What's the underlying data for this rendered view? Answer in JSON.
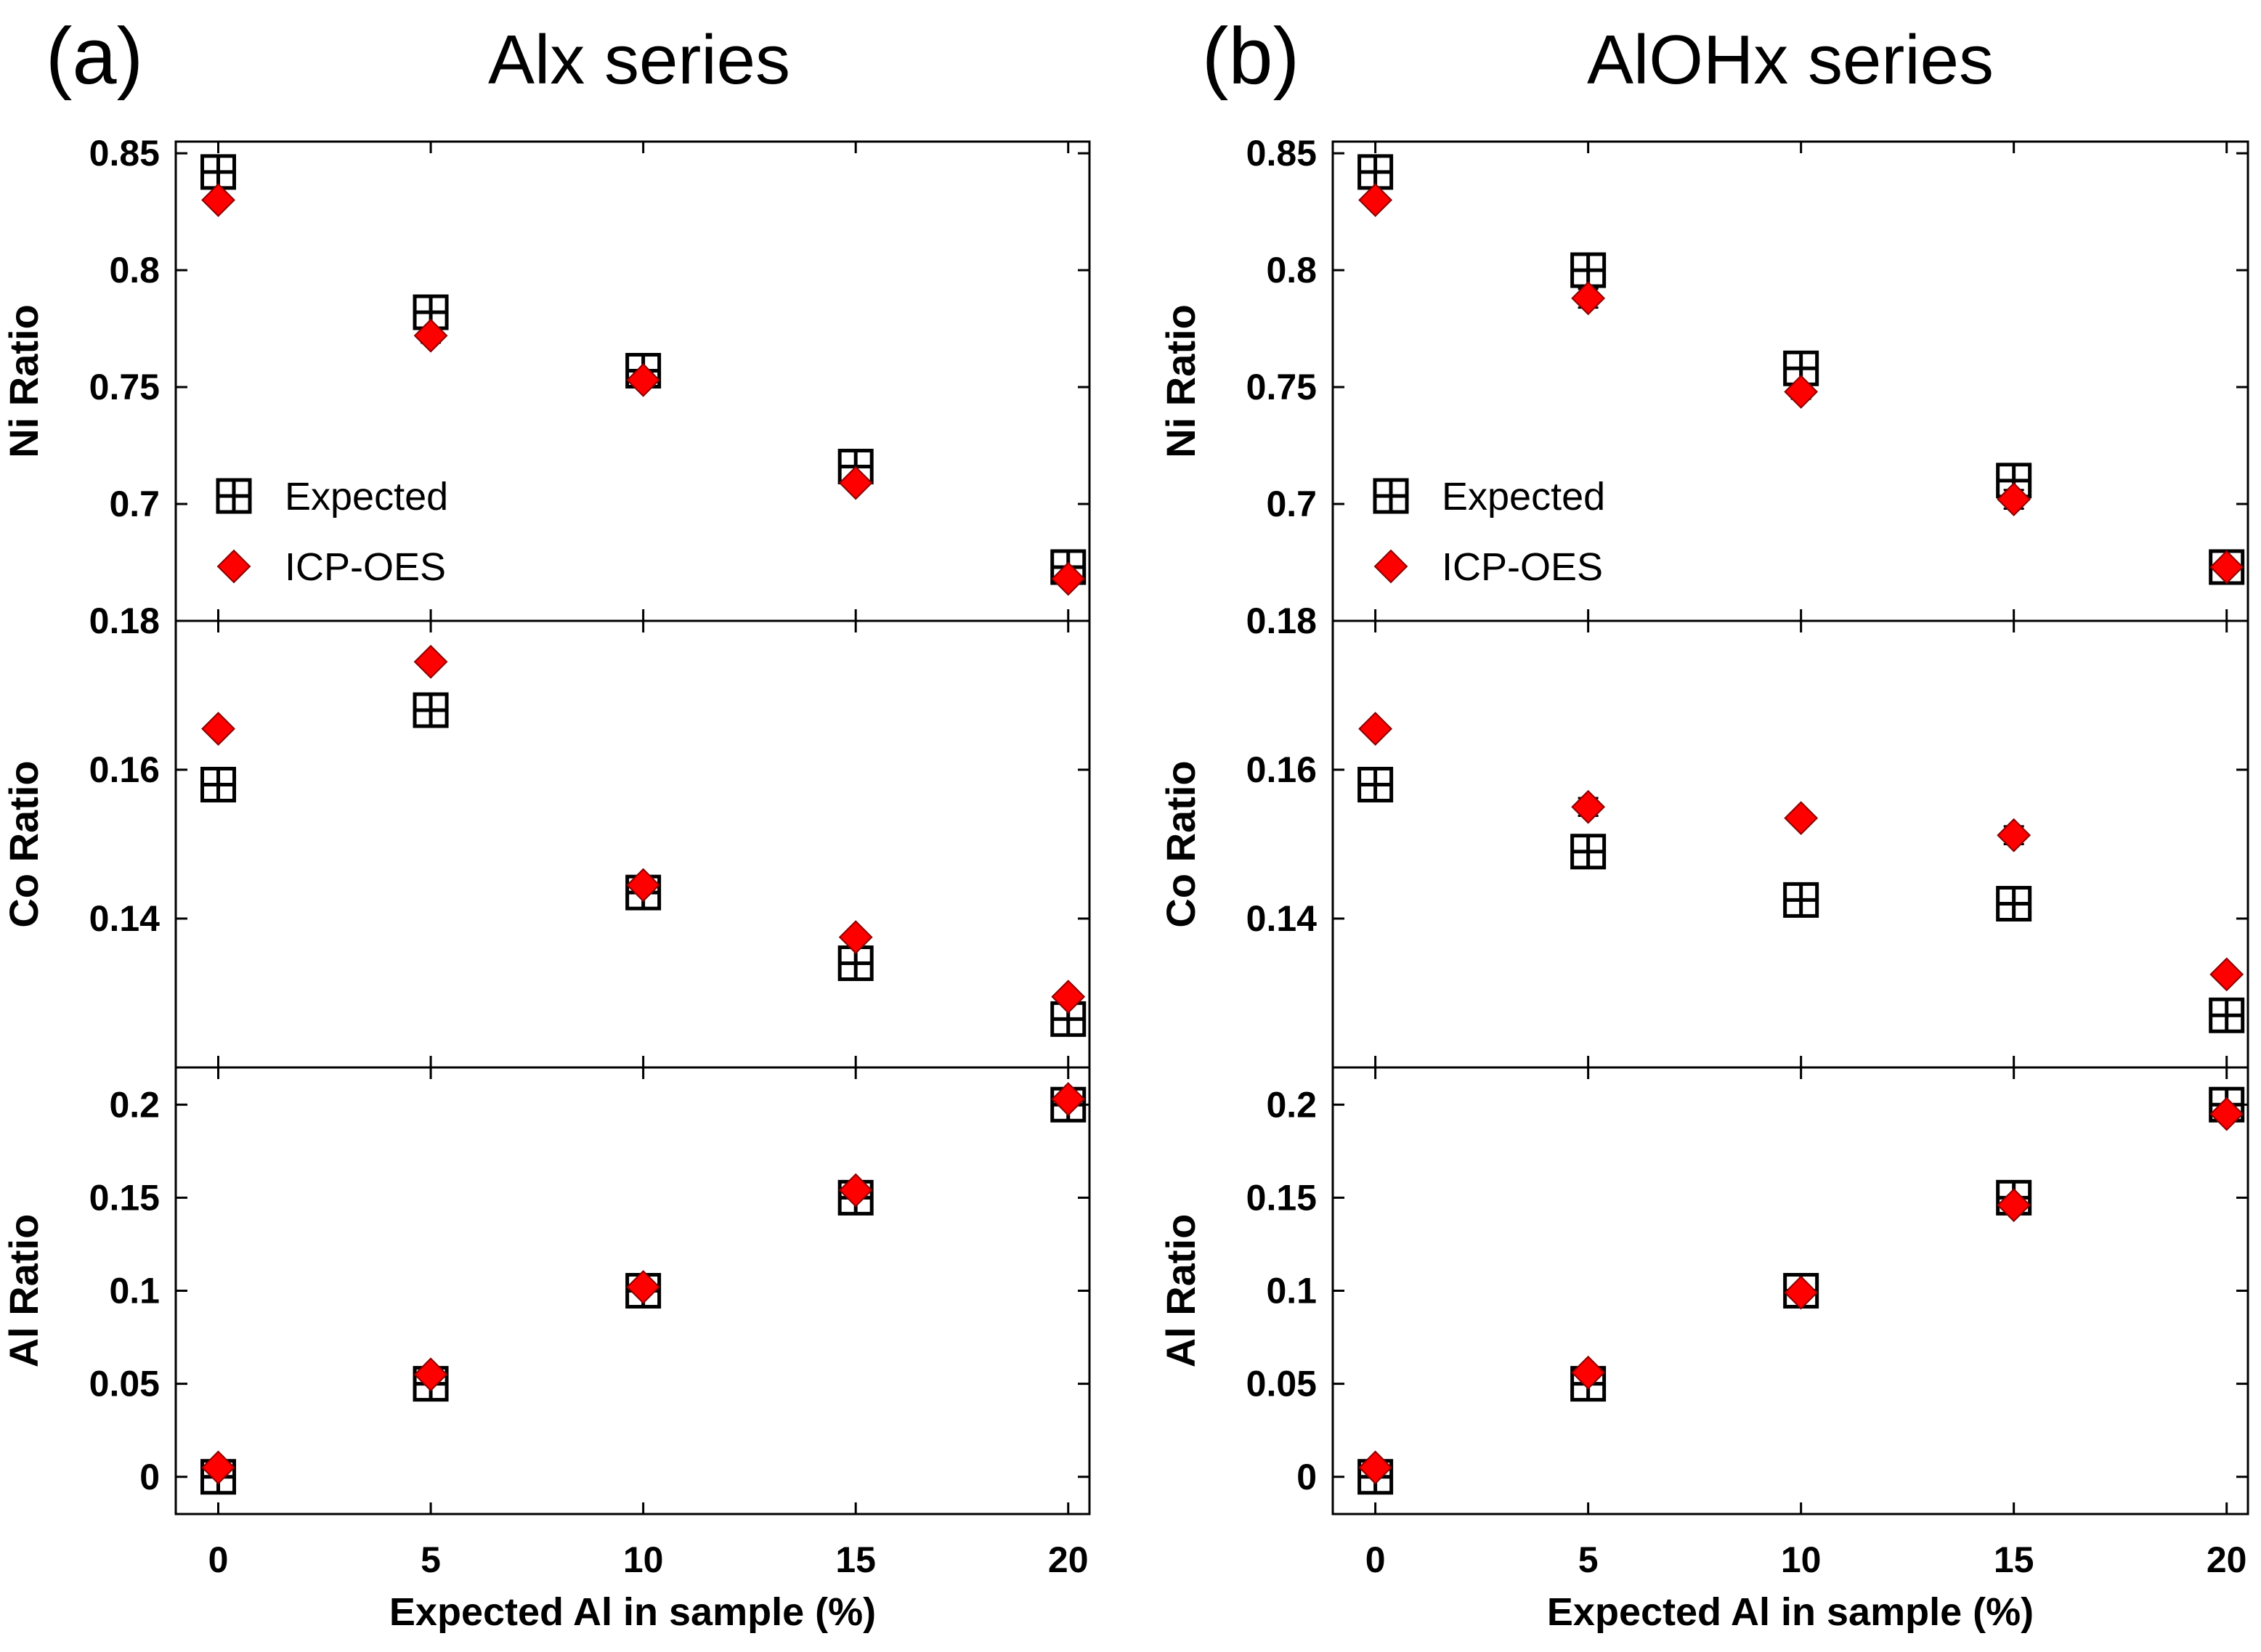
{
  "chart_data": [
    {
      "type": "scatter",
      "label": "(a)",
      "title": "Alx series",
      "xlabel": "Expected Al in sample (%)",
      "xlim": [
        -1,
        20.5
      ],
      "xticks": [
        0,
        5,
        10,
        15,
        20
      ],
      "legend": {
        "position": "left-middle",
        "entries": [
          "Expected",
          "ICP-OES"
        ]
      },
      "subplots": [
        {
          "ylabel": "Ni Ratio",
          "ylim": [
            0.65,
            0.855
          ],
          "yticks": [
            0.85,
            0.8,
            0.75,
            0.7
          ],
          "ytick_labels": [
            "0.85",
            "0.8",
            "0.75",
            "0.7"
          ],
          "series": [
            {
              "name": "Expected",
              "x": [
                0,
                5,
                10,
                15,
                20
              ],
              "y": [
                0.842,
                0.782,
                0.757,
                0.716,
                0.673
              ]
            },
            {
              "name": "ICP-OES",
              "x": [
                0,
                5,
                10,
                15,
                20
              ],
              "y": [
                0.83,
                0.772,
                0.753,
                0.709,
                0.668
              ],
              "yerr": [
                0.002,
                0.003,
                0.003,
                0.002,
                0.002
              ]
            }
          ]
        },
        {
          "ylabel": "Co Ratio",
          "ylim": [
            0.12,
            0.18
          ],
          "yticks": [
            0.18,
            0.16,
            0.14
          ],
          "ytick_labels": [
            "0.18",
            "0.16",
            "0.14"
          ],
          "series": [
            {
              "name": "Expected",
              "x": [
                0,
                5,
                10,
                15,
                20
              ],
              "y": [
                0.158,
                0.168,
                0.1435,
                0.134,
                0.1265
              ]
            },
            {
              "name": "ICP-OES",
              "x": [
                0,
                5,
                10,
                15,
                20
              ],
              "y": [
                0.1655,
                0.1745,
                0.1445,
                0.1375,
                0.1295
              ],
              "yerr": [
                0.0004,
                0.0005,
                0.0005,
                0.0004,
                0.0004
              ]
            }
          ]
        },
        {
          "ylabel": "Al Ratio",
          "ylim": [
            -0.02,
            0.22
          ],
          "yticks": [
            0.2,
            0.15,
            0.1,
            0.05,
            0
          ],
          "ytick_labels": [
            "0.2",
            "0.15",
            "0.1",
            "0.05",
            "0"
          ],
          "series": [
            {
              "name": "Expected",
              "x": [
                0,
                5,
                10,
                15,
                20
              ],
              "y": [
                0.0,
                0.05,
                0.1,
                0.15,
                0.2
              ]
            },
            {
              "name": "ICP-OES",
              "x": [
                0,
                5,
                10,
                15,
                20
              ],
              "y": [
                0.005,
                0.055,
                0.102,
                0.154,
                0.203
              ],
              "yerr": [
                0.002,
                0.002,
                0.002,
                0.002,
                0.002
              ]
            }
          ]
        }
      ]
    },
    {
      "type": "scatter",
      "label": "(b)",
      "title": "AlOHx series",
      "xlabel": "Expected Al in sample (%)",
      "xlim": [
        -1,
        20.5
      ],
      "xticks": [
        0,
        5,
        10,
        15,
        20
      ],
      "legend": {
        "position": "left-middle",
        "entries": [
          "Expected",
          "ICP-OES"
        ]
      },
      "subplots": [
        {
          "ylabel": "Ni Ratio",
          "ylim": [
            0.65,
            0.855
          ],
          "yticks": [
            0.85,
            0.8,
            0.75,
            0.7
          ],
          "ytick_labels": [
            "0.85",
            "0.8",
            "0.75",
            "0.7"
          ],
          "series": [
            {
              "name": "Expected",
              "x": [
                0,
                5,
                10,
                15,
                20
              ],
              "y": [
                0.842,
                0.8,
                0.758,
                0.71,
                0.673
              ]
            },
            {
              "name": "ICP-OES",
              "x": [
                0,
                5,
                10,
                15,
                20
              ],
              "y": [
                0.83,
                0.788,
                0.748,
                0.702,
                0.673
              ],
              "yerr": [
                0.002,
                0.004,
                0.003,
                0.004,
                0.002
              ]
            }
          ]
        },
        {
          "ylabel": "Co Ratio",
          "ylim": [
            0.12,
            0.18
          ],
          "yticks": [
            0.18,
            0.16,
            0.14
          ],
          "ytick_labels": [
            "0.18",
            "0.16",
            "0.14"
          ],
          "series": [
            {
              "name": "Expected",
              "x": [
                0,
                5,
                10,
                15,
                20
              ],
              "y": [
                0.158,
                0.149,
                0.1425,
                0.142,
                0.127
              ]
            },
            {
              "name": "ICP-OES",
              "x": [
                0,
                5,
                10,
                15,
                20
              ],
              "y": [
                0.1655,
                0.155,
                0.1535,
                0.1512,
                0.1325
              ],
              "yerr": [
                0.0004,
                0.0012,
                0.0006,
                0.0012,
                0.0006
              ]
            }
          ]
        },
        {
          "ylabel": "Al Ratio",
          "ylim": [
            -0.02,
            0.22
          ],
          "yticks": [
            0.2,
            0.15,
            0.1,
            0.05,
            0
          ],
          "ytick_labels": [
            "0.2",
            "0.15",
            "0.1",
            "0.05",
            "0"
          ],
          "series": [
            {
              "name": "Expected",
              "x": [
                0,
                5,
                10,
                15,
                20
              ],
              "y": [
                0.0,
                0.05,
                0.1,
                0.15,
                0.2
              ]
            },
            {
              "name": "ICP-OES",
              "x": [
                0,
                5,
                10,
                15,
                20
              ],
              "y": [
                0.005,
                0.056,
                0.099,
                0.146,
                0.195
              ],
              "yerr": [
                0.002,
                0.002,
                0.002,
                0.002,
                0.002
              ]
            }
          ]
        }
      ]
    }
  ],
  "colors": {
    "icp": "#ff0000",
    "icp_edge": "#8b0000",
    "expected": "#000000",
    "axis": "#000000"
  }
}
